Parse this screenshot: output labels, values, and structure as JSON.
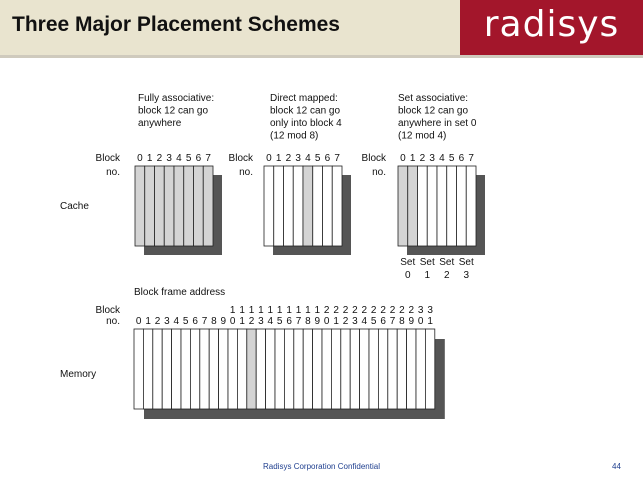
{
  "header": {
    "title": "Three Major Placement Schemes",
    "logo": "radisys"
  },
  "diagram": {
    "cache_label": "Cache",
    "memory_label": "Memory",
    "block_label": "Block",
    "no_label": "no.",
    "block_frame_address_label": "Block frame address",
    "schemes": [
      {
        "name": "fully-associative",
        "caption": [
          "Fully associative:",
          "block 12 can go",
          "anywhere"
        ],
        "block_numbers": [
          "0",
          "1",
          "2",
          "3",
          "4",
          "5",
          "6",
          "7"
        ],
        "shaded_blocks": [
          0,
          1,
          2,
          3,
          4,
          5,
          6,
          7
        ]
      },
      {
        "name": "direct-mapped",
        "caption": [
          "Direct mapped:",
          "block 12 can go",
          "only into block 4",
          "(12 mod 8)"
        ],
        "block_numbers": [
          "0",
          "1",
          "2",
          "3",
          "4",
          "5",
          "6",
          "7"
        ],
        "shaded_blocks": [
          4
        ]
      },
      {
        "name": "set-associative",
        "caption": [
          "Set associative:",
          "block 12 can go",
          "anywhere in set 0",
          "(12 mod 4)"
        ],
        "block_numbers": [
          "0",
          "1",
          "2",
          "3",
          "4",
          "5",
          "6",
          "7"
        ],
        "shaded_blocks": [
          0,
          1
        ],
        "set_labels": [
          {
            "top": "Set",
            "bottom": "0"
          },
          {
            "top": "Set",
            "bottom": "1"
          },
          {
            "top": "Set",
            "bottom": "2"
          },
          {
            "top": "Set",
            "bottom": "3"
          }
        ]
      }
    ],
    "memory": {
      "tens_digits": [
        "",
        "",
        "",
        "",
        "",
        "",
        "",
        "",
        "",
        "",
        "1",
        "1",
        "1",
        "1",
        "1",
        "1",
        "1",
        "1",
        "1",
        "1",
        "2",
        "2",
        "2",
        "2",
        "2",
        "2",
        "2",
        "2",
        "2",
        "2",
        "3",
        "3"
      ],
      "ones_digits": [
        "0",
        "1",
        "2",
        "3",
        "4",
        "5",
        "6",
        "7",
        "8",
        "9",
        "0",
        "1",
        "2",
        "3",
        "4",
        "5",
        "6",
        "7",
        "8",
        "9",
        "0",
        "1",
        "2",
        "3",
        "4",
        "5",
        "6",
        "7",
        "8",
        "9",
        "0",
        "1"
      ],
      "shaded_blocks": [
        12
      ]
    }
  },
  "footer": {
    "text": "Radisys Corporation Confidential",
    "page_number": "44"
  },
  "colors": {
    "header_bg": "#e9e4cf",
    "logo_bg": "#a3162b",
    "shade": "#d4d4d4",
    "shadow": "#555555",
    "footer_text": "#1f3f8f"
  }
}
